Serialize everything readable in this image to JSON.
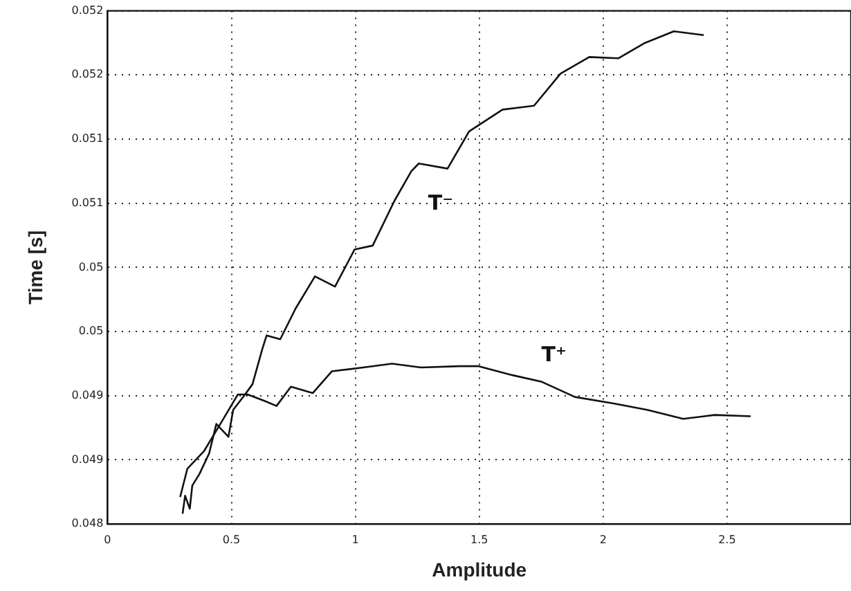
{
  "chart_data": {
    "type": "line",
    "xlabel": "Amplitude",
    "ylabel": "Time [s]",
    "xlim": [
      0,
      3
    ],
    "xticks": [
      0,
      0.5,
      1,
      1.5,
      2,
      2.5
    ],
    "ylim": [
      0.048,
      0.052
    ],
    "yticks": [
      {
        "value": 0.048,
        "label": "0.048"
      },
      {
        "value": 0.0485,
        "label": "0.049"
      },
      {
        "value": 0.049,
        "label": "0.049"
      },
      {
        "value": 0.0495,
        "label": "0.05"
      },
      {
        "value": 0.05,
        "label": "0.05"
      },
      {
        "value": 0.0505,
        "label": "0.051"
      },
      {
        "value": 0.051,
        "label": "0.051"
      },
      {
        "value": 0.0515,
        "label": "0.052"
      },
      {
        "value": 0.052,
        "label": "0.052"
      }
    ],
    "grid": true,
    "line_style": "solid",
    "marker": "none",
    "series": [
      {
        "color": "#111111",
        "x": [
          0.303,
          0.313,
          0.332,
          0.342,
          0.371,
          0.41,
          0.439,
          0.488,
          0.507,
          0.555,
          0.585,
          0.624,
          0.642,
          0.697,
          0.759,
          0.837,
          0.918,
          0.997,
          1.07,
          1.158,
          1.226,
          1.256,
          1.372,
          1.459,
          1.594,
          1.721,
          1.828,
          1.944,
          2.062,
          2.169,
          2.285,
          2.406
        ],
        "values": [
          0.04808,
          0.04822,
          0.04812,
          0.0483,
          0.04839,
          0.04855,
          0.04878,
          0.04868,
          0.04889,
          0.04901,
          0.04909,
          0.04936,
          0.04947,
          0.04944,
          0.04968,
          0.04993,
          0.04985,
          0.05014,
          0.05017,
          0.05052,
          0.05075,
          0.05081,
          0.05077,
          0.05106,
          0.05123,
          0.05126,
          0.05151,
          0.05164,
          0.05163,
          0.05175,
          0.05184,
          0.05181
        ]
      },
      {
        "color": "#111111",
        "x": [
          0.293,
          0.322,
          0.39,
          0.449,
          0.526,
          0.565,
          0.633,
          0.682,
          0.74,
          0.828,
          0.905,
          1.032,
          1.148,
          1.265,
          1.42,
          1.498,
          1.634,
          1.75,
          1.886,
          2.042,
          2.178,
          2.323,
          2.45,
          2.595
        ],
        "values": [
          0.04821,
          0.04843,
          0.04857,
          0.04876,
          0.04901,
          0.04901,
          0.04896,
          0.04892,
          0.04907,
          0.04902,
          0.04919,
          0.04922,
          0.04925,
          0.04922,
          0.04923,
          0.04923,
          0.04916,
          0.04911,
          0.04899,
          0.04894,
          0.04889,
          0.04882,
          0.04885,
          0.04884
        ]
      }
    ],
    "annotations": [
      "T⁻",
      "T⁺"
    ]
  }
}
